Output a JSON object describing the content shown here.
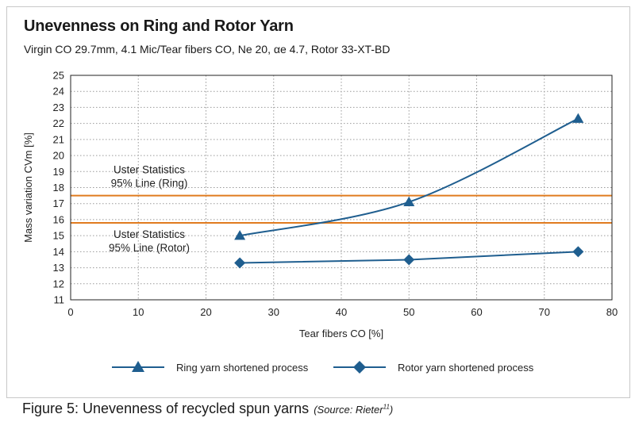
{
  "header": {
    "title": "Unevenness on Ring and Rotor Yarn",
    "subtitle": "Virgin CO 29.7mm, 4.1 Mic/Tear fibers CO, Ne 20, αe 4.7, Rotor 33-XT-BD"
  },
  "caption": {
    "text": "Figure 5: Unevenness of recycled spun yarns",
    "source": "(Source: Rieter",
    "source_sup": "11",
    "source_end": ")"
  },
  "colors": {
    "series": "#1f5e8f",
    "reference": "#e07b1f",
    "grid": "#9a9a9a"
  },
  "chart_data": {
    "type": "line",
    "xlabel": "Tear fibers CO [%]",
    "ylabel": "Mass variation CVm [%]",
    "xlim": [
      0,
      80
    ],
    "ylim": [
      11,
      25
    ],
    "xticks": [
      0,
      10,
      20,
      30,
      40,
      50,
      60,
      70,
      80
    ],
    "yticks": [
      11,
      12,
      13,
      14,
      15,
      16,
      17,
      18,
      19,
      20,
      21,
      22,
      23,
      24,
      25
    ],
    "grid": "dotted",
    "series": [
      {
        "name": "Ring yarn shortened process",
        "marker": "triangle",
        "x": [
          25,
          50,
          75
        ],
        "y": [
          15.0,
          17.1,
          22.3
        ]
      },
      {
        "name": "Rotor yarn shortened process",
        "marker": "diamond",
        "x": [
          25,
          50,
          75
        ],
        "y": [
          13.3,
          13.5,
          14.0
        ]
      }
    ],
    "reference_lines": [
      {
        "y": 17.5,
        "label_line1": "Uster Statistics",
        "label_line2": "95% Line (Ring)"
      },
      {
        "y": 15.8,
        "label_line1": "Uster Statistics",
        "label_line2": "95% Line (Rotor)"
      }
    ],
    "legend_position": "bottom"
  }
}
